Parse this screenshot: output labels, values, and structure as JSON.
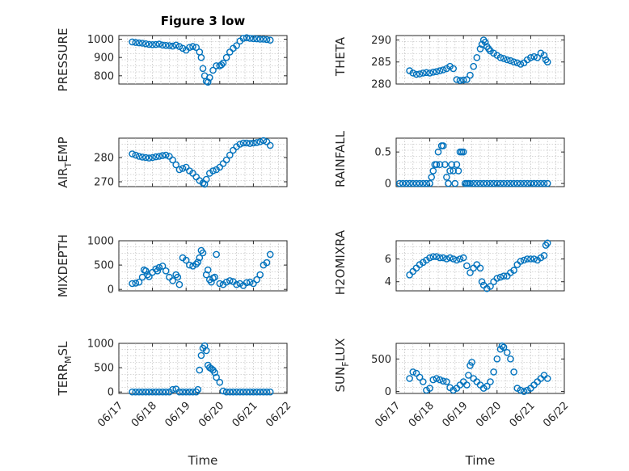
{
  "figure": {
    "title": "Figure 3 low",
    "marker_color": "#0072BD",
    "x_axis": {
      "label": "Time",
      "ticks": [
        "06/17",
        "06/18",
        "06/19",
        "06/20",
        "06/21",
        "06/22"
      ],
      "range": [
        0,
        5
      ]
    }
  },
  "chart_data": [
    {
      "type": "scatter",
      "id": "pressure",
      "ylabel_main": "PRESSURE",
      "ylabel_sub": "",
      "ylim": [
        755,
        1020
      ],
      "yticks": [
        800,
        900,
        1000
      ],
      "grid": true,
      "x": [
        0.4,
        0.5,
        0.6,
        0.7,
        0.8,
        0.9,
        1.0,
        1.1,
        1.2,
        1.3,
        1.4,
        1.5,
        1.6,
        1.7,
        1.8,
        1.9,
        2.0,
        2.1,
        2.2,
        2.3,
        2.4,
        2.45,
        2.5,
        2.55,
        2.6,
        2.65,
        2.7,
        2.8,
        2.9,
        3.0,
        3.05,
        3.1,
        3.2,
        3.3,
        3.4,
        3.5,
        3.6,
        3.7,
        3.8,
        3.9,
        4.0,
        4.1,
        4.2,
        4.3,
        4.4,
        4.5
      ],
      "y": [
        985,
        982,
        980,
        978,
        975,
        972,
        970,
        971,
        973,
        968,
        966,
        965,
        962,
        968,
        960,
        950,
        940,
        955,
        960,
        955,
        930,
        900,
        840,
        800,
        770,
        765,
        790,
        830,
        855,
        855,
        860,
        870,
        900,
        930,
        950,
        965,
        990,
        1005,
        1008,
        1005,
        1003,
        1002,
        1000,
        1000,
        998,
        995
      ]
    },
    {
      "type": "scatter",
      "id": "theta",
      "ylabel_main": "THETA",
      "ylabel_sub": "",
      "ylim": [
        280,
        291
      ],
      "yticks": [
        280,
        285,
        290
      ],
      "grid": true,
      "x": [
        0.4,
        0.5,
        0.6,
        0.7,
        0.8,
        0.9,
        1.0,
        1.1,
        1.2,
        1.3,
        1.4,
        1.5,
        1.6,
        1.7,
        1.8,
        1.9,
        2.0,
        2.1,
        2.2,
        2.3,
        2.4,
        2.5,
        2.55,
        2.6,
        2.65,
        2.7,
        2.75,
        2.8,
        2.9,
        3.0,
        3.1,
        3.2,
        3.3,
        3.4,
        3.5,
        3.6,
        3.7,
        3.8,
        3.9,
        4.0,
        4.1,
        4.2,
        4.3,
        4.4,
        4.45,
        4.5
      ],
      "y": [
        283.0,
        282.5,
        282.2,
        282.3,
        282.5,
        282.6,
        282.5,
        282.7,
        282.8,
        283.0,
        283.2,
        283.5,
        284.0,
        283.5,
        281.0,
        280.8,
        280.9,
        281.0,
        282.0,
        284.0,
        286.0,
        288.0,
        289.0,
        290.0,
        289.5,
        288.5,
        288.0,
        287.5,
        287.0,
        286.5,
        286.0,
        285.8,
        285.5,
        285.3,
        285.0,
        284.8,
        284.5,
        284.8,
        285.5,
        286.0,
        286.2,
        286.0,
        287.0,
        286.5,
        285.5,
        285.0
      ]
    },
    {
      "type": "scatter",
      "id": "air-temp",
      "ylabel_main": "AIR",
      "ylabel_sub": "T",
      "ylabel_rest": "EMP",
      "ylim": [
        268,
        288
      ],
      "yticks": [
        270,
        280
      ],
      "grid": true,
      "x": [
        0.4,
        0.5,
        0.6,
        0.7,
        0.8,
        0.9,
        1.0,
        1.1,
        1.2,
        1.3,
        1.4,
        1.5,
        1.6,
        1.7,
        1.8,
        1.9,
        2.0,
        2.1,
        2.2,
        2.3,
        2.4,
        2.5,
        2.55,
        2.6,
        2.7,
        2.8,
        2.9,
        3.0,
        3.1,
        3.2,
        3.3,
        3.4,
        3.5,
        3.6,
        3.7,
        3.8,
        3.9,
        4.0,
        4.1,
        4.2,
        4.3,
        4.4,
        4.5
      ],
      "y": [
        281.5,
        281.0,
        280.5,
        280.2,
        280.0,
        279.8,
        280.0,
        280.3,
        280.5,
        280.8,
        281.0,
        280.5,
        279.0,
        277.0,
        275.0,
        275.5,
        276.0,
        274.5,
        273.5,
        272.0,
        270.5,
        269.5,
        269.0,
        271.0,
        273.5,
        274.5,
        275.0,
        276.0,
        277.5,
        279.0,
        281.0,
        283.0,
        284.5,
        285.5,
        286.0,
        286.0,
        285.8,
        286.0,
        286.2,
        286.5,
        287.0,
        286.5,
        285.0
      ]
    },
    {
      "type": "scatter",
      "id": "rainfall",
      "ylabel_main": "RAINFALL",
      "ylabel_sub": "",
      "ylim": [
        -0.05,
        0.72
      ],
      "yticks": [
        0,
        0.5
      ],
      "grid": true,
      "x": [
        0.1,
        0.2,
        0.3,
        0.4,
        0.5,
        0.6,
        0.7,
        0.8,
        0.9,
        1.0,
        1.05,
        1.1,
        1.15,
        1.2,
        1.25,
        1.3,
        1.35,
        1.4,
        1.45,
        1.5,
        1.55,
        1.6,
        1.65,
        1.7,
        1.75,
        1.8,
        1.85,
        1.9,
        1.95,
        2.0,
        2.05,
        2.1,
        2.15,
        2.2,
        2.3,
        2.4,
        2.5,
        2.6,
        2.7,
        2.8,
        2.9,
        3.0,
        3.1,
        3.2,
        3.3,
        3.4,
        3.5,
        3.6,
        3.7,
        3.8,
        3.9,
        4.0,
        4.1,
        4.2,
        4.3,
        4.4,
        4.5
      ],
      "y": [
        0,
        0,
        0,
        0,
        0,
        0,
        0,
        0,
        0,
        0,
        0.1,
        0.2,
        0.3,
        0.3,
        0.5,
        0.3,
        0.6,
        0.6,
        0.3,
        0.1,
        0,
        0.2,
        0.3,
        0.2,
        0,
        0.3,
        0.2,
        0.5,
        0.5,
        0.5,
        0,
        0,
        0,
        0,
        0,
        0,
        0,
        0,
        0,
        0,
        0,
        0,
        0,
        0,
        0,
        0,
        0,
        0,
        0,
        0,
        0,
        0,
        0,
        0,
        0,
        0,
        0
      ]
    },
    {
      "type": "scatter",
      "id": "mixdepth",
      "ylabel_main": "MIXDEPTH",
      "ylabel_sub": "",
      "ylim": [
        -30,
        1000
      ],
      "yticks": [
        0,
        500,
        1000
      ],
      "grid": true,
      "x": [
        0.4,
        0.5,
        0.6,
        0.7,
        0.75,
        0.8,
        0.85,
        0.9,
        1.0,
        1.1,
        1.15,
        1.2,
        1.3,
        1.4,
        1.5,
        1.6,
        1.7,
        1.75,
        1.8,
        1.9,
        2.0,
        2.1,
        2.2,
        2.3,
        2.35,
        2.4,
        2.45,
        2.5,
        2.6,
        2.65,
        2.7,
        2.75,
        2.8,
        2.85,
        2.9,
        3.0,
        3.1,
        3.2,
        3.3,
        3.4,
        3.5,
        3.6,
        3.7,
        3.8,
        3.9,
        4.0,
        4.1,
        4.2,
        4.3,
        4.4,
        4.5
      ],
      "y": [
        120,
        130,
        150,
        250,
        400,
        380,
        300,
        260,
        350,
        420,
        380,
        450,
        480,
        380,
        250,
        180,
        300,
        250,
        100,
        650,
        600,
        500,
        480,
        520,
        560,
        650,
        800,
        750,
        300,
        400,
        200,
        150,
        230,
        250,
        720,
        120,
        100,
        150,
        180,
        160,
        100,
        120,
        80,
        140,
        150,
        120,
        200,
        300,
        500,
        550,
        720
      ]
    },
    {
      "type": "scatter",
      "id": "h2omixra",
      "ylabel_main": "H2OMIXRA",
      "ylabel_sub": "",
      "ylim": [
        3.2,
        7.6
      ],
      "yticks": [
        4,
        6
      ],
      "grid": true,
      "x": [
        0.4,
        0.5,
        0.6,
        0.7,
        0.8,
        0.9,
        1.0,
        1.1,
        1.2,
        1.3,
        1.4,
        1.5,
        1.6,
        1.7,
        1.8,
        1.9,
        2.0,
        2.1,
        2.2,
        2.3,
        2.4,
        2.5,
        2.55,
        2.6,
        2.7,
        2.8,
        2.9,
        3.0,
        3.1,
        3.2,
        3.3,
        3.4,
        3.5,
        3.6,
        3.7,
        3.8,
        3.9,
        4.0,
        4.1,
        4.2,
        4.3,
        4.4,
        4.45,
        4.5
      ],
      "y": [
        4.6,
        4.9,
        5.2,
        5.5,
        5.7,
        5.9,
        6.1,
        6.2,
        6.2,
        6.1,
        6.1,
        6.0,
        6.1,
        6.0,
        5.9,
        6.0,
        6.1,
        5.4,
        4.8,
        5.2,
        5.5,
        5.2,
        4.0,
        3.7,
        3.4,
        3.6,
        4.0,
        4.3,
        4.4,
        4.5,
        4.5,
        4.8,
        5.0,
        5.5,
        5.8,
        5.9,
        6.0,
        6.0,
        6.0,
        5.9,
        6.1,
        6.3,
        7.2,
        7.4
      ]
    },
    {
      "type": "scatter",
      "id": "terr-msl",
      "ylabel_main": "TERR",
      "ylabel_sub": "M",
      "ylabel_rest": "SL",
      "ylim": [
        -30,
        1000
      ],
      "yticks": [
        0,
        500,
        1000
      ],
      "grid": true,
      "x": [
        0.4,
        0.5,
        0.6,
        0.7,
        0.8,
        0.9,
        1.0,
        1.1,
        1.2,
        1.3,
        1.4,
        1.5,
        1.6,
        1.7,
        1.8,
        1.9,
        2.0,
        2.1,
        2.2,
        2.3,
        2.35,
        2.4,
        2.45,
        2.5,
        2.55,
        2.6,
        2.65,
        2.7,
        2.75,
        2.8,
        2.85,
        2.9,
        3.0,
        3.1,
        3.2,
        3.3,
        3.4,
        3.5,
        3.6,
        3.7,
        3.8,
        3.9,
        4.0,
        4.1,
        4.2,
        4.3,
        4.4,
        4.5
      ],
      "y": [
        0,
        0,
        0,
        0,
        0,
        0,
        0,
        0,
        0,
        0,
        0,
        0,
        50,
        60,
        0,
        0,
        0,
        0,
        0,
        0,
        50,
        450,
        750,
        900,
        950,
        850,
        550,
        500,
        480,
        450,
        400,
        300,
        200,
        20,
        0,
        0,
        0,
        0,
        0,
        0,
        0,
        0,
        0,
        0,
        0,
        0,
        0,
        0
      ]
    },
    {
      "type": "scatter",
      "id": "sun-flux",
      "ylabel_main": "SUN",
      "ylabel_sub": "F",
      "ylabel_rest": "LUX",
      "ylim": [
        -30,
        740
      ],
      "yticks": [
        0,
        500
      ],
      "grid": true,
      "x": [
        0.4,
        0.5,
        0.6,
        0.7,
        0.8,
        0.9,
        1.0,
        1.1,
        1.2,
        1.3,
        1.4,
        1.5,
        1.6,
        1.7,
        1.8,
        1.9,
        2.0,
        2.1,
        2.15,
        2.2,
        2.25,
        2.3,
        2.4,
        2.5,
        2.6,
        2.7,
        2.8,
        2.9,
        3.0,
        3.1,
        3.15,
        3.2,
        3.3,
        3.4,
        3.5,
        3.6,
        3.7,
        3.8,
        3.9,
        4.0,
        4.1,
        4.2,
        4.3,
        4.4,
        4.5
      ],
      "y": [
        200,
        300,
        280,
        220,
        150,
        20,
        50,
        180,
        200,
        180,
        160,
        150,
        60,
        20,
        50,
        100,
        150,
        100,
        250,
        400,
        450,
        200,
        150,
        100,
        50,
        80,
        150,
        300,
        500,
        650,
        700,
        680,
        600,
        500,
        300,
        50,
        20,
        0,
        20,
        50,
        100,
        150,
        200,
        250,
        200
      ]
    }
  ]
}
